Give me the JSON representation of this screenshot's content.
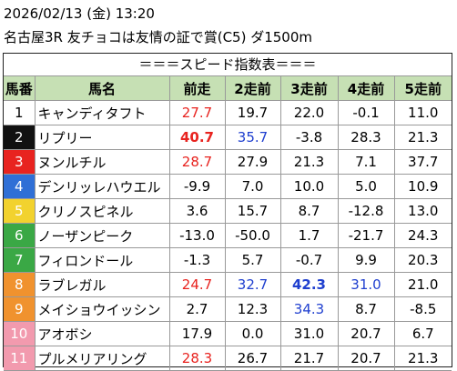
{
  "header": {
    "datetime": "2026/02/13 (金) 13:20",
    "race": "名古屋3R 友チョコは友情の証で賞(C5) ダ1500m"
  },
  "table": {
    "title": "＝＝＝スピード指数表＝＝＝",
    "columns": [
      "馬番",
      "馬名",
      "前走",
      "2走前",
      "3走前",
      "4走前",
      "5走前"
    ],
    "header_color": "#c6e0b4",
    "rows": [
      {
        "no": "1",
        "name": "キャンディタフト",
        "frame": "#ffffff",
        "frame_text": "#000000",
        "speed": [
          "27.7",
          "19.7",
          "22.0",
          "-0.1",
          "11.0"
        ],
        "colors": [
          "#e8231f",
          "#000000",
          "#000000",
          "#000000",
          "#000000"
        ],
        "bold": [
          false,
          false,
          false,
          false,
          false
        ]
      },
      {
        "no": "2",
        "name": "リプリー",
        "frame": "#111111",
        "frame_text": "#ffffff",
        "speed": [
          "40.7",
          "35.7",
          "-3.8",
          "28.3",
          "21.3"
        ],
        "colors": [
          "#e8231f",
          "#1f3fcf",
          "#000000",
          "#000000",
          "#000000"
        ],
        "bold": [
          true,
          false,
          false,
          false,
          false
        ]
      },
      {
        "no": "3",
        "name": "ヌンルチル",
        "frame": "#e8231f",
        "frame_text": "#ffffff",
        "speed": [
          "28.7",
          "27.9",
          "21.3",
          "7.1",
          "37.7"
        ],
        "colors": [
          "#e8231f",
          "#000000",
          "#000000",
          "#000000",
          "#000000"
        ],
        "bold": [
          false,
          false,
          false,
          false,
          false
        ]
      },
      {
        "no": "4",
        "name": "デンリッレハウエル",
        "frame": "#2f6fd6",
        "frame_text": "#ffffff",
        "speed": [
          "-9.9",
          "7.0",
          "10.0",
          "5.0",
          "10.9"
        ],
        "colors": [
          "#000000",
          "#000000",
          "#000000",
          "#000000",
          "#000000"
        ],
        "bold": [
          false,
          false,
          false,
          false,
          false
        ]
      },
      {
        "no": "5",
        "name": "クリノスピネル",
        "frame": "#f2d22e",
        "frame_text": "#ffffff",
        "speed": [
          "3.6",
          "15.7",
          "8.7",
          "-12.8",
          "13.0"
        ],
        "colors": [
          "#000000",
          "#000000",
          "#000000",
          "#000000",
          "#000000"
        ],
        "bold": [
          false,
          false,
          false,
          false,
          false
        ]
      },
      {
        "no": "6",
        "name": "ノーザンピーク",
        "frame": "#3aa845",
        "frame_text": "#ffffff",
        "speed": [
          "-13.0",
          "-50.0",
          "1.7",
          "-21.7",
          "24.3"
        ],
        "colors": [
          "#000000",
          "#000000",
          "#000000",
          "#000000",
          "#000000"
        ],
        "bold": [
          false,
          false,
          false,
          false,
          false
        ]
      },
      {
        "no": "7",
        "name": "フィロンドール",
        "frame": "#3aa845",
        "frame_text": "#ffffff",
        "speed": [
          "-1.3",
          "5.7",
          "-0.7",
          "9.9",
          "20.3"
        ],
        "colors": [
          "#000000",
          "#000000",
          "#000000",
          "#000000",
          "#000000"
        ],
        "bold": [
          false,
          false,
          false,
          false,
          false
        ]
      },
      {
        "no": "8",
        "name": "ラブレガル",
        "frame": "#f0922e",
        "frame_text": "#ffffff",
        "speed": [
          "24.7",
          "32.7",
          "42.3",
          "31.0",
          "21.0"
        ],
        "colors": [
          "#e8231f",
          "#1f3fcf",
          "#1f3fcf",
          "#1f3fcf",
          "#000000"
        ],
        "bold": [
          false,
          false,
          true,
          false,
          false
        ]
      },
      {
        "no": "9",
        "name": "メイショウイッシン",
        "frame": "#f0922e",
        "frame_text": "#ffffff",
        "speed": [
          "2.7",
          "12.3",
          "34.3",
          "8.7",
          "-8.5"
        ],
        "colors": [
          "#000000",
          "#000000",
          "#1f3fcf",
          "#000000",
          "#000000"
        ],
        "bold": [
          false,
          false,
          false,
          false,
          false
        ]
      },
      {
        "no": "10",
        "name": "アオボシ",
        "frame": "#f29aae",
        "frame_text": "#ffffff",
        "speed": [
          "17.9",
          "0.0",
          "31.0",
          "20.7",
          "6.7"
        ],
        "colors": [
          "#000000",
          "#000000",
          "#000000",
          "#000000",
          "#000000"
        ],
        "bold": [
          false,
          false,
          false,
          false,
          false
        ]
      },
      {
        "no": "11",
        "name": "プルメリアリング",
        "frame": "#f29aae",
        "frame_text": "#ffffff",
        "speed": [
          "28.3",
          "26.7",
          "21.7",
          "20.7",
          "21.3"
        ],
        "colors": [
          "#e8231f",
          "#000000",
          "#000000",
          "#000000",
          "#000000"
        ],
        "bold": [
          false,
          false,
          false,
          false,
          false
        ]
      }
    ]
  }
}
